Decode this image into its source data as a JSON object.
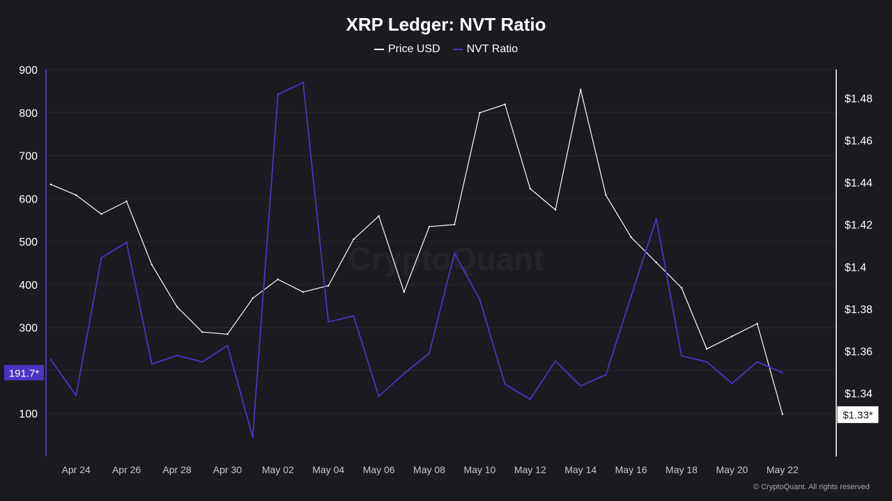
{
  "chart_data": {
    "type": "line",
    "title": "XRP Ledger: NVT Ratio",
    "x": [
      "Apr 23",
      "Apr 24",
      "Apr 25",
      "Apr 26",
      "Apr 27",
      "Apr 28",
      "Apr 29",
      "Apr 30",
      "May 01",
      "May 02",
      "May 03",
      "May 04",
      "May 05",
      "May 06",
      "May 07",
      "May 08",
      "May 09",
      "May 10",
      "May 11",
      "May 12",
      "May 13",
      "May 14",
      "May 15",
      "May 16",
      "May 17",
      "May 18",
      "May 19",
      "May 20",
      "May 21",
      "May 22"
    ],
    "x_tick_labels": [
      "Apr 24",
      "Apr 26",
      "Apr 28",
      "Apr 30",
      "May 02",
      "May 04",
      "May 06",
      "May 08",
      "May 10",
      "May 12",
      "May 14",
      "May 16",
      "May 18",
      "May 20",
      "May 22"
    ],
    "series": [
      {
        "name": "Price USD",
        "axis": "right",
        "color": "#ffffff",
        "values": [
          1.439,
          1.434,
          1.425,
          1.431,
          1.401,
          1.381,
          1.369,
          1.368,
          1.385,
          1.394,
          1.388,
          1.391,
          1.413,
          1.424,
          1.388,
          1.419,
          1.42,
          1.473,
          1.477,
          1.437,
          1.427,
          1.484,
          1.434,
          1.414,
          1.402,
          1.39,
          1.361,
          1.367,
          1.373,
          1.33
        ]
      },
      {
        "name": "NVT Ratio",
        "axis": "left",
        "color": "#4b34c4",
        "values": [
          225,
          142,
          462,
          498,
          215,
          235,
          220,
          258,
          45,
          842,
          870,
          313,
          327,
          140,
          193,
          240,
          473,
          365,
          168,
          133,
          222,
          164,
          190,
          372,
          553,
          234,
          220,
          170,
          220,
          195
        ]
      }
    ],
    "y_left": {
      "ylim": [
        0,
        900
      ],
      "ticks": [
        100,
        200,
        300,
        400,
        500,
        600,
        700,
        800,
        900
      ],
      "tick_labels": [
        "100",
        "",
        "300",
        "400",
        "500",
        "600",
        "700",
        "800",
        "900"
      ]
    },
    "y_right": {
      "ylim": [
        1.31,
        1.4935
      ],
      "ticks": [
        1.34,
        1.36,
        1.38,
        1.4,
        1.42,
        1.44,
        1.46,
        1.48
      ],
      "tick_labels": [
        "$1.34",
        "$1.36",
        "$1.38",
        "$1.4",
        "$1.42",
        "$1.44",
        "$1.46",
        "$1.48"
      ]
    },
    "left_value_badge": "191.7*",
    "right_value_badge": "$1.33*",
    "grid": true,
    "legend_position": "top-center"
  },
  "watermark": "CryptoQuant",
  "footer": "© CryptoQuant. All rights reserved",
  "colors": {
    "background": "#1b1a20",
    "nvt": "#4b34c4",
    "price": "#ffffff",
    "grid": "#2a2930"
  }
}
